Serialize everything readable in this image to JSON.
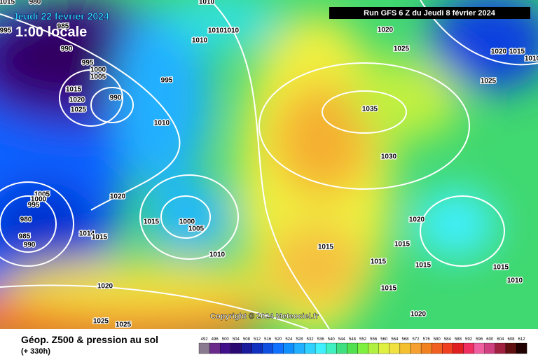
{
  "header": {
    "valid_date": "Jeudi 22 février 2024",
    "local_time": "1:00 locale",
    "run": "Run GFS 6 Z du Jeudi 8 février 2024"
  },
  "copyright": "Copyright © 2024 Meteociel.fr",
  "footer": {
    "title": "Géop. Z500 & pression au sol",
    "lead_time": "(+ 330h)"
  },
  "legend": {
    "levels": [
      492,
      496,
      500,
      504,
      508,
      512,
      516,
      520,
      524,
      528,
      532,
      536,
      540,
      544,
      548,
      552,
      556,
      560,
      564,
      568,
      572,
      576,
      580,
      584,
      588,
      592,
      596,
      600,
      604,
      608,
      612
    ]
  },
  "isobar_labels": [
    1015,
    980,
    1010,
    995,
    985,
    1010,
    1010,
    990,
    1010,
    995,
    1000,
    1005,
    1015,
    1020,
    990,
    1025,
    995,
    1010,
    1020,
    1025,
    1020,
    1015,
    1010,
    1025,
    1035,
    1030,
    1005,
    1000,
    995,
    1020,
    980,
    985,
    990,
    1015,
    1000,
    1005,
    1014,
    1015,
    1010,
    1015,
    1020,
    1015,
    1015,
    1015,
    1015,
    1010,
    1020,
    1015,
    1020,
    1025,
    1025
  ]
}
